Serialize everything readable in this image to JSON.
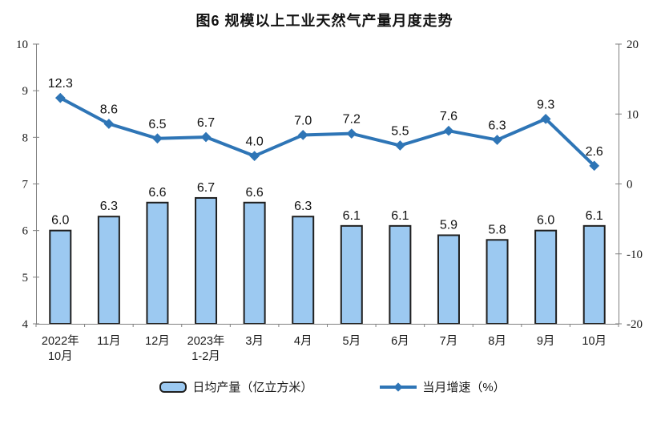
{
  "title": "图6 规模以上工业天然气产量月度走势",
  "legend": {
    "bar": "日均产量（亿立方米）",
    "line": "当月增速（%）"
  },
  "colors": {
    "bar_fill": "#9CC9F1",
    "bar_stroke": "#1F1F1F",
    "line": "#2E75B6",
    "axis": "#808080",
    "text": "#1A1A1A"
  },
  "chart_data": {
    "type": "combo",
    "title": "图6 规模以上工业天然气产量月度走势",
    "categories": [
      "2022年\n10月",
      "11月",
      "12月",
      "2023年\n1-2月",
      "3月",
      "4月",
      "5月",
      "6月",
      "7月",
      "8月",
      "9月",
      "10月"
    ],
    "series": [
      {
        "name": "日均产量（亿立方米）",
        "type": "bar",
        "axis": "left",
        "values": [
          6.0,
          6.3,
          6.6,
          6.7,
          6.6,
          6.3,
          6.1,
          6.1,
          5.9,
          5.8,
          6.0,
          6.1
        ]
      },
      {
        "name": "当月增速（%）",
        "type": "line",
        "axis": "right",
        "values": [
          12.3,
          8.6,
          6.5,
          6.7,
          4.0,
          7.0,
          7.2,
          5.5,
          7.6,
          6.3,
          9.3,
          2.6
        ]
      }
    ],
    "y_left": {
      "min": 4,
      "max": 10,
      "ticks": [
        10,
        9,
        8,
        7,
        6,
        5,
        4
      ]
    },
    "y_right": {
      "min": -20,
      "max": 20,
      "ticks": [
        20,
        10,
        0,
        -10,
        -20
      ]
    },
    "grid": false,
    "legend_position": "bottom"
  }
}
